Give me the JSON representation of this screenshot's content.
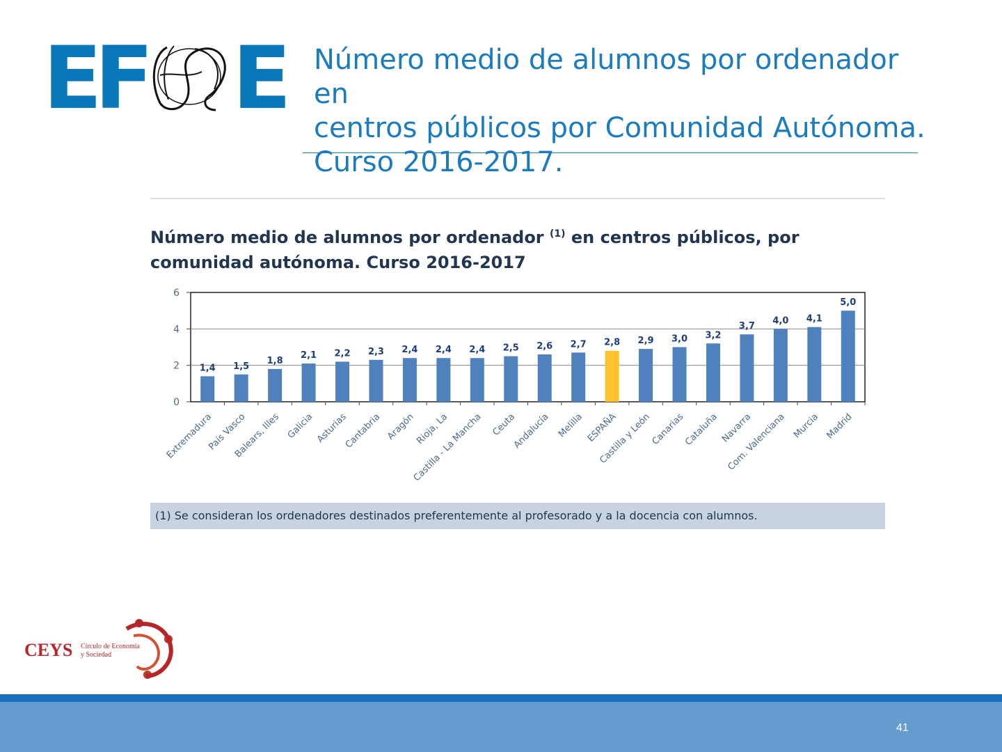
{
  "logo": {
    "letters": [
      "E",
      "F",
      "E"
    ]
  },
  "slide": {
    "title_lines": [
      "Número medio de alumnos por ordenador en",
      "centros públicos por Comunidad Autónoma.",
      "Curso 2016-2017."
    ],
    "page_number": "41"
  },
  "figure": {
    "title_part1": "Número medio de alumnos por ordenador ",
    "title_sup": "(1)",
    "title_part2": " en centros públicos, por comunidad autónoma. Curso 2016-2017",
    "footnote": "(1) Se consideran los ordenadores destinados preferentemente al profesorado y a la docencia con alumnos."
  },
  "ceys": {
    "name": "CEYS",
    "tagline_1": "Círculo de Economía",
    "tagline_2": "y Sociedad"
  },
  "chart_data": {
    "type": "bar",
    "title": "Número medio de alumnos por ordenador (1) en centros públicos, por comunidad autónoma. Curso 2016-2017",
    "xlabel": "",
    "ylabel": "",
    "ylim": [
      0,
      6
    ],
    "yticks": [
      0,
      2,
      4,
      6
    ],
    "grid": true,
    "categories": [
      "Extremadura",
      "País Vasco",
      "Balears, Illes",
      "Galicia",
      "Asturias",
      "Cantabria",
      "Aragón",
      "Rioja, La",
      "Castilla - La Mancha",
      "Ceuta",
      "Andalucía",
      "Melilla",
      "ESPAÑA",
      "Castilla y León",
      "Canarias",
      "Cataluña",
      "Navarra",
      "Com. Valenciana",
      "Murcia",
      "Madrid"
    ],
    "values": [
      1.4,
      1.5,
      1.8,
      2.1,
      2.2,
      2.3,
      2.4,
      2.4,
      2.4,
      2.5,
      2.6,
      2.7,
      2.8,
      2.9,
      3.0,
      3.2,
      3.7,
      4.0,
      4.1,
      5.0
    ],
    "value_labels": [
      "1,4",
      "1,5",
      "1,8",
      "2,1",
      "2,2",
      "2,3",
      "2,4",
      "2,4",
      "2,4",
      "2,5",
      "2,6",
      "2,7",
      "2,8",
      "2,9",
      "3,0",
      "3,2",
      "3,7",
      "4,0",
      "4,1",
      "5,0"
    ],
    "highlight_category": "ESPAÑA",
    "colors": {
      "bar": "#4f81bd",
      "highlight": "#ffc12e",
      "label": "#1f3d7a",
      "tick": "#4a6a92"
    }
  }
}
